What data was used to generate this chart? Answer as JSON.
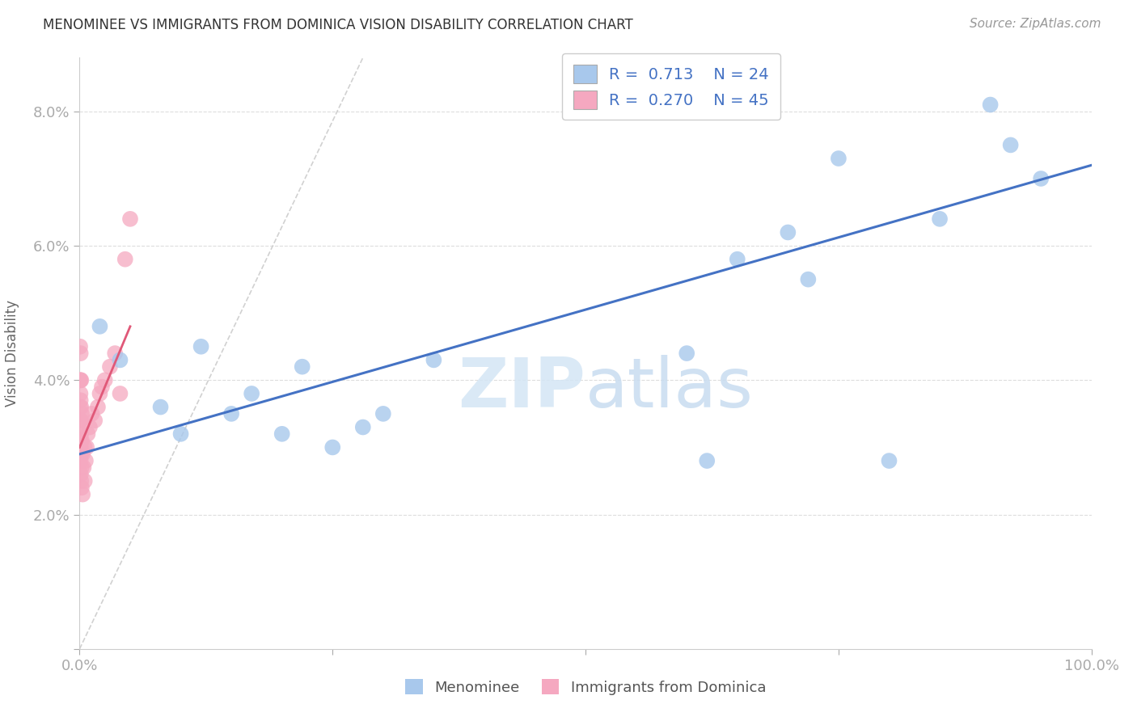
{
  "title": "MENOMINEE VS IMMIGRANTS FROM DOMINICA VISION DISABILITY CORRELATION CHART",
  "source": "Source: ZipAtlas.com",
  "ylabel": "Vision Disability",
  "legend_R_blue": "R = 0.713",
  "legend_N_blue": "N = 24",
  "legend_R_pink": "R = 0.270",
  "legend_N_pink": "N = 45",
  "blue_scatter_color": "#a8c8ec",
  "pink_scatter_color": "#f5a8c0",
  "blue_line_color": "#4472c4",
  "pink_line_color": "#e05878",
  "diag_line_color": "#cccccc",
  "grid_color": "#dddddd",
  "watermark_color": "#dce8f5",
  "xlim": [
    0,
    100
  ],
  "ylim": [
    0,
    8.8
  ],
  "ytick_positions": [
    0,
    2,
    4,
    6,
    8
  ],
  "ytick_labels": [
    "",
    "2.0%",
    "4.0%",
    "6.0%",
    "8.0%"
  ],
  "xtick_positions": [
    0,
    25,
    50,
    75,
    100
  ],
  "xtick_labels": [
    "0.0%",
    "",
    "",
    "",
    "100.0%"
  ],
  "menominee_x": [
    2,
    4,
    8,
    10,
    12,
    15,
    17,
    20,
    22,
    25,
    28,
    30,
    35,
    60,
    62,
    65,
    70,
    72,
    75,
    80,
    85,
    90,
    92,
    95
  ],
  "menominee_y": [
    4.8,
    4.3,
    3.6,
    3.2,
    4.5,
    3.5,
    3.8,
    3.2,
    4.2,
    3.0,
    3.3,
    3.5,
    4.3,
    4.4,
    2.8,
    5.8,
    6.2,
    5.5,
    7.3,
    2.8,
    6.4,
    8.1,
    7.5,
    7.0
  ],
  "dominica_x": [
    0.05,
    0.05,
    0.05,
    0.05,
    0.08,
    0.08,
    0.08,
    0.1,
    0.1,
    0.1,
    0.1,
    0.1,
    0.1,
    0.12,
    0.12,
    0.12,
    0.15,
    0.15,
    0.15,
    0.15,
    0.15,
    0.2,
    0.2,
    0.2,
    0.2,
    0.3,
    0.3,
    0.4,
    0.5,
    0.5,
    0.6,
    0.7,
    0.8,
    1.0,
    1.2,
    1.5,
    1.8,
    2.0,
    2.2,
    2.5,
    3.0,
    3.5,
    4.0,
    4.5,
    5.0
  ],
  "dominica_y": [
    3.2,
    3.6,
    4.0,
    4.5,
    3.0,
    3.4,
    3.8,
    2.8,
    3.1,
    3.4,
    3.7,
    4.0,
    4.4,
    2.6,
    3.0,
    3.4,
    2.5,
    2.9,
    3.2,
    3.6,
    4.0,
    2.4,
    2.7,
    3.1,
    3.5,
    2.3,
    2.9,
    2.7,
    2.5,
    3.0,
    2.8,
    3.0,
    3.2,
    3.3,
    3.5,
    3.4,
    3.6,
    3.8,
    3.9,
    4.0,
    4.2,
    4.4,
    3.8,
    5.8,
    6.4
  ],
  "blue_line_x0": 0,
  "blue_line_y0": 2.9,
  "blue_line_x1": 100,
  "blue_line_y1": 7.2,
  "pink_line_x0": 0,
  "pink_line_y0": 3.0,
  "pink_line_x1": 5.0,
  "pink_line_y1": 4.8,
  "diag_x0": 0,
  "diag_y0": 0,
  "diag_x1": 28,
  "diag_y1": 8.8
}
